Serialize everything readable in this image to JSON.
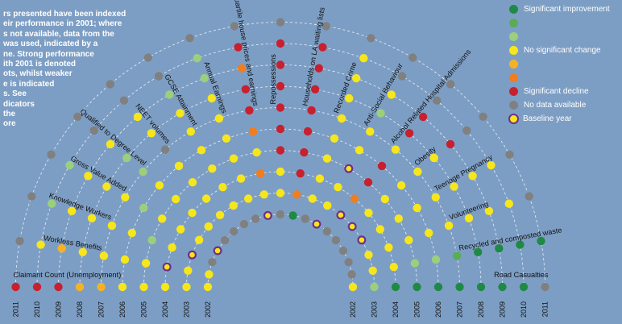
{
  "intro_text": [
    "rs presented have been indexed",
    "eir performance in 2001; where",
    "s not available, data from the",
    " was used, indicated by a",
    "ne. Strong performance",
    "ith 2001 is denoted",
    "ots, whilst weaker",
    "e is indicated",
    "s. See",
    "dicators",
    "the",
    "ore"
  ],
  "colors": {
    "background": "#7d9ec4",
    "sig_improve": "#1f8a45",
    "improve2": "#59ad57",
    "improve3": "#9ccf7c",
    "improve4": "#d5e8b5",
    "no_change": "#f7e61a",
    "decline1": "#f5b324",
    "decline2": "#f07d1e",
    "decline3": "#e8481f",
    "sig_decline": "#c8202e",
    "no_data": "#808080",
    "baseline_ring": "#6f2f8e"
  },
  "legend": [
    {
      "label": "Significant improvement",
      "color": "sig_improve"
    },
    {
      "label": "",
      "color": "improve2"
    },
    {
      "label": "",
      "color": "improve3"
    },
    {
      "label": "No significant change",
      "color": "no_change"
    },
    {
      "label": "",
      "color": "decline1"
    },
    {
      "label": "",
      "color": "decline2"
    },
    {
      "label": "Significant decline",
      "color": "sig_decline"
    },
    {
      "label": "No data available",
      "color": "no_data"
    },
    {
      "label": "Baseline year",
      "color": "baseline",
      "ring": true
    }
  ],
  "chart_data": {
    "type": "radial dot matrix",
    "years": [
      "2002",
      "2003",
      "2004",
      "2005",
      "2006",
      "2007",
      "2008",
      "2009",
      "2010",
      "2011"
    ],
    "status_codes": {
      "G": "Significant improvement",
      "g": "improvement",
      "l": "slight improvement",
      "p": "slight improvement",
      "Y": "No significant change",
      "o": "slight decline",
      "O": "decline",
      "r": "decline",
      "R": "Significant decline",
      "N": "No data available",
      "B": "Baseline year"
    },
    "indicators": [
      {
        "name": "Claimant Count (Unemployment)",
        "values": [
          "Y",
          "Y",
          "Y",
          "Y",
          "Y",
          "o",
          "o",
          "R",
          "R",
          "R"
        ]
      },
      {
        "name": "Workless Benefits",
        "values": [
          "Y",
          "Y",
          "B",
          "Y",
          "Y",
          "Y",
          "Y",
          "o",
          "Y",
          "N"
        ]
      },
      {
        "name": "Knowledge Workers",
        "values": [
          "N",
          "B",
          "Y",
          "l",
          "Y",
          "Y",
          "Y",
          "Y",
          "l",
          "N"
        ]
      },
      {
        "name": "Gross Value Added",
        "values": [
          "B",
          "Y",
          "Y",
          "Y",
          "l",
          "Y",
          "Y",
          "Y",
          "l",
          "N"
        ]
      },
      {
        "name": "Qualified to Degree Level",
        "values": [
          "N",
          "Y",
          "Y",
          "Y",
          "Y",
          "l",
          "l",
          "Y",
          "N",
          "N"
        ]
      },
      {
        "name": "NEET volumes",
        "values": [
          "N",
          "Y",
          "Y",
          "Y",
          "Y",
          "N",
          "Y",
          "Y",
          "N",
          "N"
        ]
      },
      {
        "name": "GCSE Attainment",
        "values": [
          "N",
          "Y",
          "Y",
          "Y",
          "Y",
          "Y",
          "Y",
          "l",
          "N",
          "N"
        ]
      },
      {
        "name": "Annual Earnings",
        "values": [
          "N",
          "Y",
          "Y",
          "Y",
          "Y",
          "Y",
          "Y",
          "l",
          "l",
          "N"
        ]
      },
      {
        "name": "Lower quartile house prices and earnings",
        "values": [
          "B",
          "Y",
          "O",
          "Y",
          "O",
          "R",
          "R",
          "O",
          "R",
          "N"
        ]
      },
      {
        "name": "Repossessions",
        "values": [
          "N",
          "Y",
          "Y",
          "R",
          "R",
          "R",
          "R",
          "R",
          "R",
          "N"
        ]
      },
      {
        "name": "Households on LA waiting lists",
        "values": [
          "G",
          "O",
          "R",
          "R",
          "R",
          "R",
          "R",
          "R",
          "R",
          "N"
        ]
      },
      {
        "name": "Recorded Crime",
        "values": [
          "N",
          "Y",
          "Y",
          "Y",
          "Y",
          "Y",
          "Y",
          "Y",
          "Y",
          "N"
        ]
      },
      {
        "name": "Anti-Social Behaviour",
        "values": [
          "B",
          "Y",
          "Y",
          "B",
          "Y",
          "Y",
          "l",
          "Y",
          "N",
          "N"
        ]
      },
      {
        "name": "Alcohol Related Hospital Admissions",
        "values": [
          "N",
          "B",
          "O",
          "R",
          "R",
          "Y",
          "R",
          "R",
          "N",
          "N"
        ]
      },
      {
        "name": "Obesity",
        "values": [
          "N",
          "B",
          "Y",
          "Y",
          "Y",
          "Y",
          "Y",
          "R",
          "N",
          "N"
        ]
      },
      {
        "name": "Teenage Pregnancy",
        "values": [
          "N",
          "B",
          "Y",
          "Y",
          "Y",
          "Y",
          "Y",
          "Y",
          "Y",
          "N"
        ]
      },
      {
        "name": "Volunteering",
        "values": [
          "N",
          "Y",
          "Y",
          "Y",
          "Y",
          "Y",
          "Y",
          "Y",
          "Y",
          "N"
        ]
      },
      {
        "name": "Recycled and composted waste",
        "values": [
          "N",
          "Y",
          "Y",
          "l",
          "l",
          "g",
          "G",
          "G",
          "G",
          "G"
        ]
      },
      {
        "name": "Road Casualties",
        "values": [
          "Y",
          "l",
          "G",
          "G",
          "G",
          "G",
          "G",
          "G",
          "G",
          "N"
        ]
      }
    ]
  }
}
